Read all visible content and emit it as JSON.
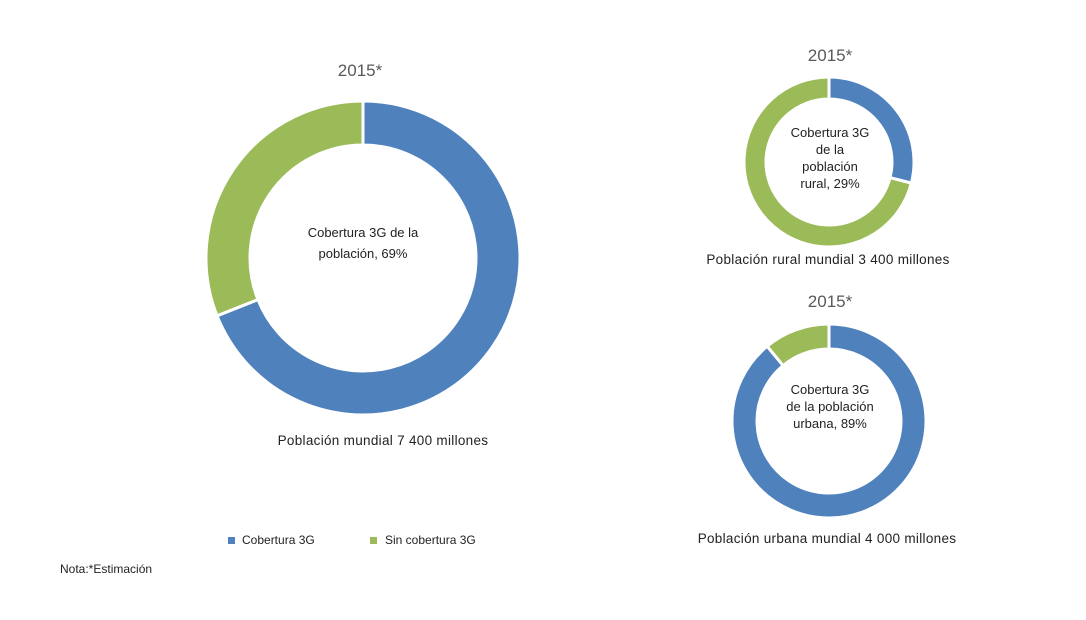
{
  "colors": {
    "covered": "#4F81BD",
    "uncovered": "#9BBB59"
  },
  "chart_data": [
    {
      "type": "pie",
      "name": "world",
      "title": "2015*",
      "center_label": [
        "Cobertura 3G de la",
        "población, 69%"
      ],
      "caption": "Población mundial 7 400 millones",
      "slices": [
        {
          "label": "Cobertura 3G",
          "value": 69
        },
        {
          "label": "Sin cobertura 3G",
          "value": 31
        }
      ]
    },
    {
      "type": "pie",
      "name": "rural",
      "title": "2015*",
      "center_label": [
        "Cobertura 3G",
        "de la",
        "población",
        "rural, 29%"
      ],
      "caption": "Población rural mundial 3 400 millones",
      "slices": [
        {
          "label": "Cobertura 3G",
          "value": 29
        },
        {
          "label": "Sin cobertura 3G",
          "value": 71
        }
      ]
    },
    {
      "type": "pie",
      "name": "urban",
      "title": "2015*",
      "center_label": [
        "Cobertura 3G",
        "de la población",
        "urbana, 89%"
      ],
      "caption": "Población urbana mundial 4 000 millones",
      "slices": [
        {
          "label": "Cobertura 3G",
          "value": 89
        },
        {
          "label": "Sin cobertura 3G",
          "value": 11
        }
      ]
    }
  ],
  "legend": [
    {
      "label": "Cobertura 3G"
    },
    {
      "label": "Sin cobertura 3G"
    }
  ],
  "note": "Nota:*Estimación"
}
